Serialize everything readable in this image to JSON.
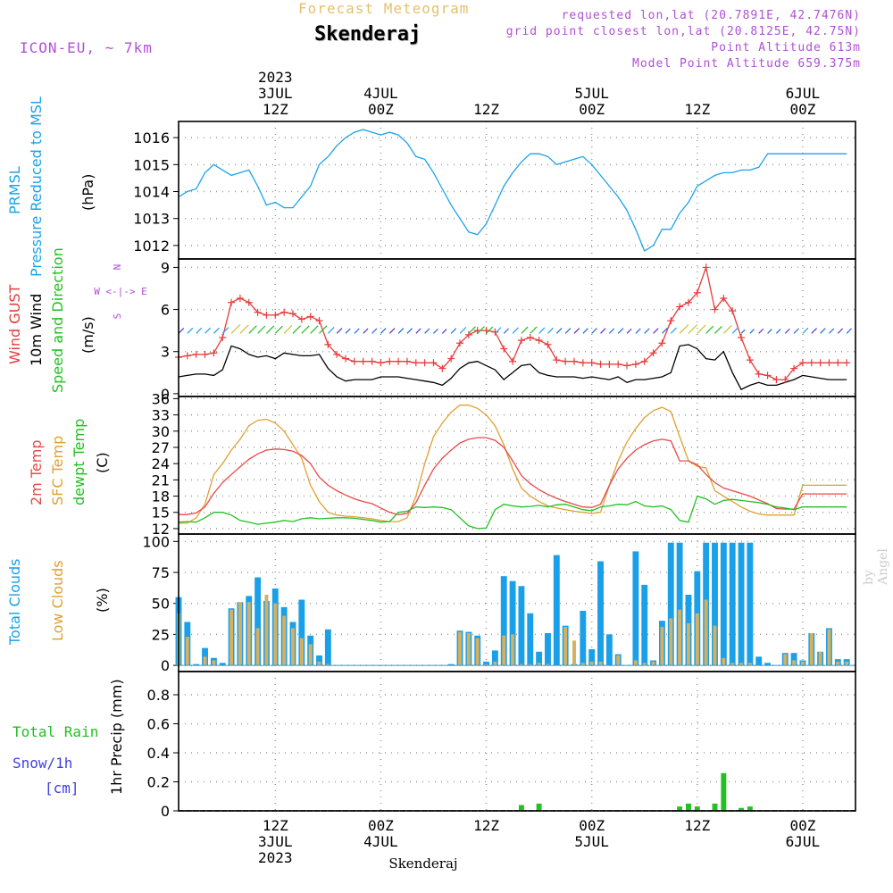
{
  "header": {
    "product": "Forecast Meteogram",
    "station": "Skenderaj",
    "model": "ICON-EU, ~ 7km",
    "requested": "requested lon,lat (20.7891E, 42.7476N)",
    "gridpoint": "grid point closest lon,lat (20.8125E, 42.75N)",
    "point_alt": "Point Altitude 613m",
    "model_alt": "Model Point Altitude 659.375m"
  },
  "footer_station": "Skenderaj",
  "signature": "by Angel",
  "time_axis": {
    "hours_start": 0,
    "hours_end": 77,
    "top_labels": [
      {
        "hour": 11,
        "lines": [
          "2023",
          "3JUL",
          "12Z"
        ]
      },
      {
        "hour": 23,
        "lines": [
          "4JUL",
          "00Z"
        ]
      },
      {
        "hour": 35,
        "lines": [
          "12Z"
        ]
      },
      {
        "hour": 47,
        "lines": [
          "5JUL",
          "00Z"
        ]
      },
      {
        "hour": 59,
        "lines": [
          "12Z"
        ]
      },
      {
        "hour": 71,
        "lines": [
          "6JUL",
          "00Z"
        ]
      }
    ],
    "bottom_labels": [
      {
        "hour": 11,
        "lines": [
          "12Z",
          "3JUL",
          "2023"
        ]
      },
      {
        "hour": 23,
        "lines": [
          "00Z",
          "4JUL"
        ]
      },
      {
        "hour": 35,
        "lines": [
          "12Z"
        ]
      },
      {
        "hour": 47,
        "lines": [
          "00Z",
          "5JUL"
        ]
      },
      {
        "hour": 59,
        "lines": [
          "12Z"
        ]
      },
      {
        "hour": 71,
        "lines": [
          "00Z",
          "6JUL"
        ]
      }
    ]
  },
  "colors": {
    "pressure": "#1aa3e8",
    "gust": "#e83c3c",
    "wind": "#000000",
    "temp": "#e84848",
    "sfc": "#e0a030",
    "dewpt": "#22c022",
    "total_cloud": "#1aa0e8",
    "low_cloud": "#d4b060",
    "rain": "#22c022",
    "snow": "#4040e0",
    "label_purple": "#b04fd6"
  },
  "panels": {
    "pressure": {
      "labels": [
        "PRMSL",
        "Pressure Reduced to MSL"
      ],
      "unit": "(hPa)"
    },
    "wind": {
      "labels": [
        "Wind GUST",
        "10m Wind",
        "Speed and Direction"
      ],
      "unit": "(m/s)",
      "compass": [
        "N",
        "W <-|-> E",
        "S"
      ]
    },
    "temp": {
      "labels": [
        "2m Temp",
        "SFC Temp",
        "dewpt Temp"
      ],
      "unit": "(C)"
    },
    "clouds": {
      "labels": [
        "Total Clouds",
        "Low Clouds"
      ],
      "unit": "(%)"
    },
    "precip": {
      "labels": [
        "Total Rain",
        "Snow/1h",
        "[cm]"
      ],
      "unit": "1hr Precip (mm)"
    }
  },
  "chart_data": [
    {
      "type": "line",
      "title": "PRMSL Pressure Reduced to MSL",
      "ylabel": "(hPa)",
      "ylim": [
        1011.5,
        1016.6
      ],
      "yticks": [
        1012,
        1013,
        1014,
        1015,
        1016
      ],
      "x": [
        0,
        1,
        2,
        3,
        4,
        5,
        6,
        7,
        8,
        9,
        10,
        11,
        12,
        13,
        14,
        15,
        16,
        17,
        18,
        19,
        20,
        21,
        22,
        23,
        24,
        25,
        26,
        27,
        28,
        29,
        30,
        31,
        32,
        33,
        34,
        35,
        36,
        37,
        38,
        39,
        40,
        41,
        42,
        43,
        44,
        45,
        46,
        47,
        48,
        49,
        50,
        51,
        52,
        53,
        54,
        55,
        56,
        57,
        58,
        59,
        60,
        61,
        62,
        63,
        64,
        65,
        66,
        67,
        68,
        69,
        70,
        71,
        72,
        73,
        74,
        75,
        76
      ],
      "series": [
        {
          "name": "PRMSL",
          "values": [
            1013.8,
            1014.0,
            1014.1,
            1014.7,
            1015.0,
            1014.8,
            1014.6,
            1014.7,
            1014.8,
            1014.2,
            1013.5,
            1013.6,
            1013.4,
            1013.4,
            1013.8,
            1014.2,
            1015.0,
            1015.3,
            1015.7,
            1016.0,
            1016.2,
            1016.3,
            1016.2,
            1016.1,
            1016.2,
            1016.1,
            1015.8,
            1015.3,
            1015.2,
            1014.7,
            1014.1,
            1013.5,
            1013.0,
            1012.5,
            1012.4,
            1012.8,
            1013.5,
            1014.2,
            1014.7,
            1015.1,
            1015.4,
            1015.4,
            1015.3,
            1015.0,
            1015.1,
            1015.2,
            1015.3,
            1015.0,
            1014.6,
            1014.2,
            1013.8,
            1013.3,
            1012.6,
            1011.8,
            1012.0,
            1012.6,
            1012.6,
            1013.2,
            1013.6,
            1014.2,
            1014.4,
            1014.6,
            1014.7,
            1014.7,
            1014.8,
            1014.8,
            1014.9,
            1015.4,
            1015.4,
            1015.4,
            1015.4,
            1015.4,
            1015.4,
            1015.4,
            1015.4,
            1015.4,
            1015.4
          ]
        }
      ]
    },
    {
      "type": "line",
      "title": "Wind GUST / 10m Wind Speed and Direction",
      "ylabel": "(m/s)",
      "ylim": [
        -0.2,
        9.6
      ],
      "yticks": [
        0,
        3,
        6,
        9
      ],
      "x": [
        0,
        1,
        2,
        3,
        4,
        5,
        6,
        7,
        8,
        9,
        10,
        11,
        12,
        13,
        14,
        15,
        16,
        17,
        18,
        19,
        20,
        21,
        22,
        23,
        24,
        25,
        26,
        27,
        28,
        29,
        30,
        31,
        32,
        33,
        34,
        35,
        36,
        37,
        38,
        39,
        40,
        41,
        42,
        43,
        44,
        45,
        46,
        47,
        48,
        49,
        50,
        51,
        52,
        53,
        54,
        55,
        56,
        57,
        58,
        59,
        60,
        61,
        62,
        63,
        64,
        65,
        66,
        67,
        68,
        69,
        70,
        71,
        72,
        73,
        74,
        75,
        76
      ],
      "series": [
        {
          "name": "Wind GUST",
          "values": [
            2.6,
            2.7,
            2.8,
            2.8,
            2.9,
            4.0,
            6.5,
            6.8,
            6.5,
            5.8,
            5.6,
            5.6,
            5.8,
            5.7,
            5.3,
            5.5,
            5.2,
            3.5,
            2.8,
            2.5,
            2.3,
            2.3,
            2.3,
            2.2,
            2.3,
            2.3,
            2.3,
            2.2,
            2.2,
            2.2,
            1.8,
            2.5,
            3.6,
            4.2,
            4.5,
            4.5,
            4.4,
            3.2,
            2.3,
            3.8,
            4.0,
            3.8,
            3.5,
            2.4,
            2.3,
            2.3,
            2.2,
            2.2,
            2.1,
            2.1,
            2.1,
            2.0,
            2.1,
            2.3,
            2.9,
            3.6,
            5.2,
            6.2,
            6.5,
            7.2,
            9.0,
            6.0,
            6.8,
            5.9,
            4.0,
            2.4,
            1.4,
            1.3,
            1.0,
            1.0,
            1.8,
            2.2,
            2.2,
            2.2,
            2.2,
            2.2,
            2.2
          ]
        },
        {
          "name": "10m Wind",
          "values": [
            1.2,
            1.3,
            1.4,
            1.4,
            1.3,
            1.7,
            3.4,
            3.2,
            2.8,
            2.6,
            2.7,
            2.5,
            2.9,
            2.8,
            2.7,
            2.7,
            2.8,
            1.8,
            1.2,
            0.9,
            1.0,
            1.0,
            1.0,
            1.2,
            1.2,
            1.2,
            1.1,
            1.0,
            0.9,
            0.8,
            0.6,
            1.1,
            1.8,
            2.2,
            2.3,
            2.0,
            1.7,
            1.0,
            1.5,
            2.0,
            2.1,
            1.5,
            1.3,
            1.2,
            1.2,
            1.2,
            1.1,
            1.2,
            1.1,
            1.0,
            1.2,
            0.8,
            1.0,
            1.0,
            1.1,
            1.2,
            1.5,
            3.4,
            3.5,
            3.2,
            2.5,
            2.4,
            3.0,
            1.5,
            0.3,
            0.6,
            0.8,
            0.6,
            0.6,
            0.8,
            1.0,
            1.3,
            1.2,
            1.1,
            1.0,
            1.0,
            1.0
          ]
        }
      ]
    },
    {
      "type": "line",
      "title": "2m Temp / SFC Temp / dewpt Temp",
      "ylabel": "(C)",
      "ylim": [
        11,
        36.4
      ],
      "yticks": [
        12,
        15,
        18,
        21,
        24,
        27,
        30,
        33,
        36
      ],
      "x": [
        0,
        1,
        2,
        3,
        4,
        5,
        6,
        7,
        8,
        9,
        10,
        11,
        12,
        13,
        14,
        15,
        16,
        17,
        18,
        19,
        20,
        21,
        22,
        23,
        24,
        25,
        26,
        27,
        28,
        29,
        30,
        31,
        32,
        33,
        34,
        35,
        36,
        37,
        38,
        39,
        40,
        41,
        42,
        43,
        44,
        45,
        46,
        47,
        48,
        49,
        50,
        51,
        52,
        53,
        54,
        55,
        56,
        57,
        58,
        59,
        60,
        61,
        62,
        63,
        64,
        65,
        66,
        67,
        68,
        69,
        70,
        71,
        72,
        73,
        74,
        75,
        76
      ],
      "series": [
        {
          "name": "2m Temp",
          "values": [
            14.6,
            14.6,
            14.9,
            16.0,
            18.5,
            20.5,
            22.0,
            23.4,
            24.8,
            25.8,
            26.5,
            26.7,
            26.6,
            26.3,
            25.5,
            24.0,
            21.5,
            20.0,
            19.0,
            18.2,
            17.5,
            17.0,
            16.6,
            15.8,
            15.0,
            14.6,
            14.8,
            16.8,
            20.0,
            23.0,
            25.0,
            26.5,
            27.8,
            28.5,
            28.8,
            28.8,
            28.3,
            27.0,
            24.5,
            21.8,
            20.3,
            19.2,
            18.3,
            17.6,
            17.0,
            16.5,
            16.0,
            15.9,
            16.5,
            20.0,
            23.0,
            25.0,
            26.5,
            27.5,
            28.2,
            28.5,
            28.2,
            24.5,
            24.5,
            23.8,
            22.0,
            20.5,
            19.5,
            19.0,
            18.5,
            18.0,
            17.3,
            16.6,
            15.7,
            15.6,
            15.6,
            18.4,
            18.4,
            18.4,
            18.4,
            18.4,
            18.4
          ]
        },
        {
          "name": "SFC Temp",
          "values": [
            13.0,
            13.0,
            14.0,
            16.5,
            22.0,
            24.0,
            26.5,
            28.5,
            31.0,
            32.0,
            32.2,
            31.5,
            30.0,
            27.5,
            25.0,
            20.0,
            17.0,
            15.0,
            14.5,
            14.3,
            14.2,
            14.0,
            13.8,
            13.5,
            13.3,
            13.3,
            14.0,
            18.0,
            24.0,
            29.0,
            31.5,
            33.5,
            34.8,
            34.8,
            34.2,
            33.0,
            31.0,
            27.5,
            23.0,
            19.5,
            18.0,
            17.0,
            16.2,
            15.8,
            15.5,
            15.2,
            15.0,
            14.8,
            15.0,
            20.0,
            24.5,
            28.0,
            30.5,
            32.5,
            33.8,
            34.4,
            33.6,
            29.0,
            24.5,
            23.5,
            23.2,
            19.0,
            18.0,
            17.0,
            16.0,
            15.2,
            14.7,
            14.5,
            14.5,
            14.5,
            14.5,
            20.0,
            20.0,
            20.0,
            20.0,
            20.0,
            20.0
          ]
        },
        {
          "name": "dewpt Temp",
          "values": [
            13.2,
            13.3,
            13.2,
            14.0,
            15.0,
            15.0,
            14.5,
            13.5,
            13.2,
            12.8,
            13.0,
            13.2,
            13.5,
            13.3,
            13.8,
            14.0,
            13.8,
            13.9,
            14.0,
            14.0,
            13.9,
            13.7,
            13.5,
            13.2,
            13.3,
            15.0,
            15.2,
            16.0,
            15.9,
            16.0,
            15.9,
            15.5,
            14.0,
            12.5,
            12.0,
            12.1,
            15.5,
            16.5,
            16.2,
            16.0,
            16.1,
            16.3,
            16.0,
            16.4,
            16.5,
            16.0,
            15.5,
            15.3,
            16.0,
            16.2,
            16.5,
            16.4,
            17.0,
            16.2,
            16.0,
            16.2,
            15.5,
            13.5,
            13.2,
            18.0,
            17.5,
            16.5,
            17.2,
            17.4,
            17.2,
            17.0,
            16.8,
            16.5,
            16.0,
            15.8,
            15.5,
            16.0,
            16.0,
            16.0,
            16.0,
            16.0,
            16.0
          ]
        }
      ]
    },
    {
      "type": "bar",
      "title": "Total Clouds / Low Clouds",
      "ylabel": "(%)",
      "ylim": [
        -5,
        106
      ],
      "yticks": [
        0,
        25,
        50,
        75,
        100
      ],
      "x": [
        0,
        1,
        2,
        3,
        4,
        5,
        6,
        7,
        8,
        9,
        10,
        11,
        12,
        13,
        14,
        15,
        16,
        17,
        18,
        19,
        20,
        21,
        22,
        23,
        24,
        25,
        26,
        27,
        28,
        29,
        30,
        31,
        32,
        33,
        34,
        35,
        36,
        37,
        38,
        39,
        40,
        41,
        42,
        43,
        44,
        45,
        46,
        47,
        48,
        49,
        50,
        51,
        52,
        53,
        54,
        55,
        56,
        57,
        58,
        59,
        60,
        61,
        62,
        63,
        64,
        65,
        66,
        67,
        68,
        69,
        70,
        71,
        72,
        73,
        74,
        75,
        76
      ],
      "series": [
        {
          "name": "Total Clouds",
          "values": [
            55,
            35,
            1,
            14,
            6,
            2,
            46,
            51,
            56,
            71,
            52,
            62,
            47,
            35,
            53,
            24,
            8,
            29,
            0,
            0,
            0,
            0,
            0,
            0,
            0,
            0,
            0,
            0,
            0,
            0,
            0,
            1,
            28,
            27,
            24,
            3,
            12,
            72,
            68,
            64,
            42,
            11,
            26,
            89,
            32,
            1,
            44,
            13,
            84,
            25,
            9,
            0,
            92,
            65,
            4,
            36,
            99,
            99,
            57,
            76,
            99,
            99,
            99,
            99,
            99,
            99,
            7,
            2,
            0,
            10,
            10,
            4,
            26,
            11,
            30,
            5,
            5
          ]
        },
        {
          "name": "Low Clouds",
          "values": [
            42,
            23,
            0,
            7,
            4,
            0,
            45,
            51,
            51,
            30,
            57,
            50,
            40,
            30,
            22,
            17,
            3,
            1,
            0,
            0,
            0,
            0,
            0,
            0,
            0,
            0,
            0,
            0,
            0,
            0,
            0,
            0,
            27,
            26,
            22,
            1,
            3,
            24,
            25,
            1,
            1,
            2,
            1,
            0,
            31,
            20,
            2,
            3,
            3,
            0,
            8,
            0,
            4,
            2,
            3,
            31,
            38,
            45,
            34,
            42,
            53,
            32,
            6,
            2,
            2,
            2,
            0,
            0,
            0,
            9,
            4,
            3,
            26,
            11,
            29,
            3,
            3
          ]
        }
      ]
    },
    {
      "type": "bar",
      "title": "1hr Precip",
      "ylabel": "1hr Precip (mm)",
      "ylim": [
        0,
        0.96
      ],
      "yticks": [
        0,
        0.2,
        0.4,
        0.6,
        0.8
      ],
      "ytick_labels": [
        "0",
        "0.2",
        "0.4",
        "0.6",
        "0.8"
      ],
      "x": [
        39,
        41,
        57,
        58,
        59,
        61,
        62,
        64,
        65
      ],
      "series": [
        {
          "name": "Total Rain",
          "values": [
            0.04,
            0.05,
            0.03,
            0.05,
            0.03,
            0.05,
            0.26,
            0.02,
            0.03
          ]
        }
      ]
    }
  ]
}
